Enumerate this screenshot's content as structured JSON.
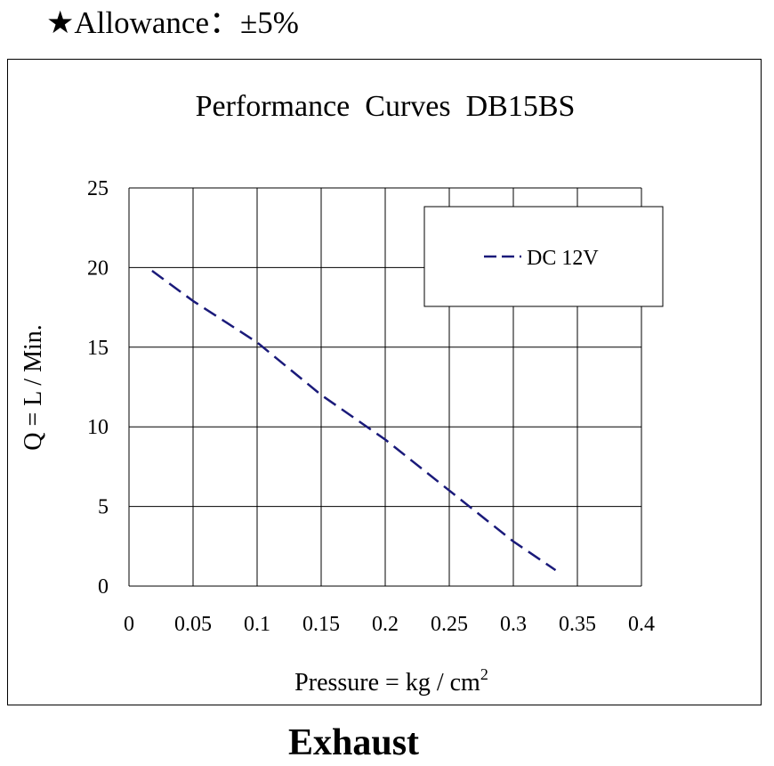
{
  "header": {
    "star": "★",
    "allowance_text": "Allowance：±5%"
  },
  "caption": "Exhaust",
  "chart_data": {
    "type": "line",
    "title": "Performance  Curves  DB15BS",
    "xlabel": "Pressure = kg / cm",
    "xlabel_superscript": "2",
    "ylabel": "Q = L / Min.",
    "xlim": [
      0,
      0.4
    ],
    "ylim": [
      0,
      25
    ],
    "x_ticks": [
      0,
      0.05,
      0.1,
      0.15,
      0.2,
      0.25,
      0.3,
      0.35,
      0.4
    ],
    "y_ticks": [
      0,
      5,
      10,
      15,
      20,
      25
    ],
    "grid": true,
    "legend_position": "top-right",
    "series": [
      {
        "name": "DC 12V",
        "color": "#1a1a7a",
        "line_style": "dashed",
        "x": [
          0.018,
          0.05,
          0.1,
          0.15,
          0.2,
          0.25,
          0.3,
          0.333
        ],
        "y": [
          19.8,
          17.9,
          15.3,
          12.0,
          9.2,
          6.0,
          2.8,
          1.0
        ]
      }
    ]
  }
}
